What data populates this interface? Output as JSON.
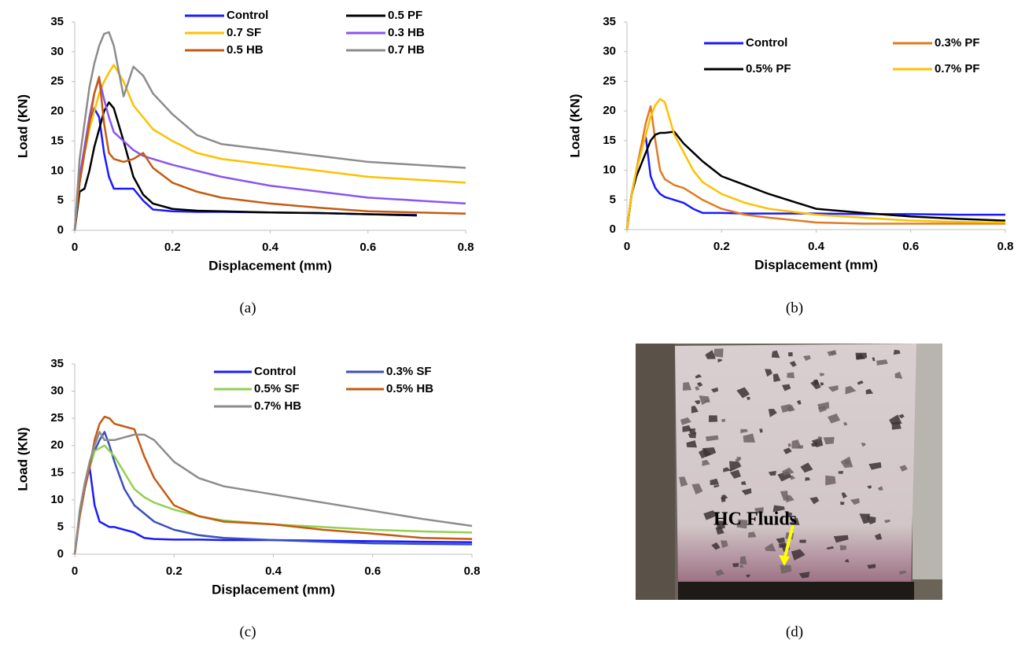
{
  "chart_data": [
    {
      "type": "line",
      "caption": "(a)",
      "x_label": "Displacement (mm)",
      "y_label": "Load (KN)",
      "xlim": [
        0,
        0.8
      ],
      "ylim": [
        0,
        35
      ],
      "xticks": [
        0,
        0.2,
        0.4,
        0.6,
        0.8
      ],
      "yticks": [
        0,
        5,
        10,
        15,
        20,
        25,
        30,
        35
      ],
      "x": [
        0,
        0.01,
        0.02,
        0.03,
        0.04,
        0.05,
        0.06,
        0.07,
        0.08,
        0.1,
        0.12,
        0.14,
        0.16,
        0.2,
        0.25,
        0.3,
        0.4,
        0.5,
        0.6,
        0.7,
        0.8
      ],
      "series": [
        {
          "name": "Control",
          "color": "#1a1aff",
          "values": [
            0,
            8,
            13,
            17,
            20.5,
            19,
            13,
            9,
            7,
            7,
            7,
            5,
            3.5,
            3.2,
            3.1,
            3.1,
            3,
            2.9,
            2.7,
            2.6,
            null
          ]
        },
        {
          "name": "0.5 PF",
          "color": "#000000",
          "values": [
            0,
            6.5,
            7,
            10,
            14,
            17,
            20,
            21.5,
            20.5,
            15,
            9,
            6,
            4.5,
            3.6,
            3.3,
            3.2,
            3,
            2.9,
            2.7,
            2.5,
            null
          ]
        },
        {
          "name": "0.7 SF",
          "color": "#ffc000",
          "values": [
            0,
            9,
            13,
            17,
            20,
            23,
            25,
            26.5,
            27.8,
            25,
            21,
            19,
            17,
            15,
            13,
            12,
            11,
            10,
            9,
            8.5,
            8
          ]
        },
        {
          "name": "0.3 HB",
          "color": "#8a55f0",
          "values": [
            0,
            9,
            14,
            19,
            23,
            25.5,
            22,
            19,
            16.5,
            15,
            13.5,
            12.5,
            12,
            11,
            10,
            9,
            7.5,
            6.5,
            5.5,
            5,
            4.5
          ]
        },
        {
          "name": "0.5 HB",
          "color": "#c55a11",
          "values": [
            0,
            8,
            13,
            18,
            23,
            25.8,
            18,
            13,
            12,
            11.5,
            12,
            13,
            10.5,
            8,
            6.5,
            5.5,
            4.5,
            3.8,
            3.2,
            3,
            2.8
          ]
        },
        {
          "name": "0.7 HB",
          "color": "#8c8c8c",
          "values": [
            0,
            12,
            18,
            24,
            28,
            31,
            33,
            33.3,
            31,
            22.5,
            27.5,
            26,
            23,
            19.5,
            16,
            14.5,
            13.5,
            12.5,
            11.5,
            11,
            10.5
          ]
        }
      ]
    },
    {
      "type": "line",
      "caption": "(b)",
      "x_label": "Displacement (mm)",
      "y_label": "Load (KN)",
      "xlim": [
        0,
        0.8
      ],
      "ylim": [
        0,
        35
      ],
      "xticks": [
        0,
        0.2,
        0.4,
        0.6,
        0.8
      ],
      "yticks": [
        0,
        5,
        10,
        15,
        20,
        25,
        30,
        35
      ],
      "x": [
        0,
        0.01,
        0.02,
        0.03,
        0.04,
        0.05,
        0.06,
        0.07,
        0.08,
        0.1,
        0.12,
        0.14,
        0.16,
        0.2,
        0.25,
        0.3,
        0.4,
        0.5,
        0.6,
        0.7,
        0.8
      ],
      "series": [
        {
          "name": "Control",
          "color": "#1a1aff",
          "values": [
            0,
            6,
            10,
            14,
            15.5,
            9,
            7,
            6,
            5.5,
            5,
            4.5,
            3.5,
            2.8,
            2.8,
            2.7,
            2.7,
            2.7,
            2.6,
            2.6,
            2.5,
            2.5
          ]
        },
        {
          "name": "0.3% PF",
          "color": "#e07b20",
          "values": [
            0,
            6,
            10,
            14,
            18,
            20.8,
            15,
            10,
            8.5,
            7.5,
            7,
            6,
            5,
            3.5,
            2.5,
            2,
            1.2,
            1,
            1,
            1,
            1
          ]
        },
        {
          "name": "0.5% PF",
          "color": "#000000",
          "values": [
            0,
            6,
            9,
            11,
            13,
            15,
            16,
            16.3,
            16.3,
            16.5,
            14.5,
            13,
            11.5,
            9,
            7.5,
            6,
            3.5,
            2.8,
            2.2,
            1.8,
            1.5
          ]
        },
        {
          "name": "0.7% PF",
          "color": "#ffc000",
          "values": [
            0,
            6,
            10,
            13,
            16,
            19,
            21,
            22,
            21.5,
            16,
            13,
            10,
            8,
            6,
            4.5,
            3.5,
            2.5,
            2,
            1.5,
            1.3,
            1.2
          ]
        }
      ]
    },
    {
      "type": "line",
      "caption": "(c)",
      "x_label": "Displacement (mm)",
      "y_label": "Load (KN)",
      "xlim": [
        0,
        0.8
      ],
      "ylim": [
        0,
        35
      ],
      "xticks": [
        0,
        0.2,
        0.4,
        0.6,
        0.8
      ],
      "yticks": [
        0,
        5,
        10,
        15,
        20,
        25,
        30,
        35
      ],
      "x": [
        0,
        0.01,
        0.02,
        0.03,
        0.04,
        0.05,
        0.06,
        0.07,
        0.08,
        0.1,
        0.12,
        0.14,
        0.16,
        0.2,
        0.25,
        0.3,
        0.4,
        0.5,
        0.6,
        0.7,
        0.8
      ],
      "series": [
        {
          "name": "Control",
          "color": "#1a1aff",
          "values": [
            0,
            7,
            12,
            16,
            9,
            6,
            5.5,
            5,
            5,
            4.5,
            4,
            3,
            2.8,
            2.7,
            2.7,
            2.6,
            2.6,
            2.5,
            2.4,
            2.3,
            2.2
          ]
        },
        {
          "name": "0.3% SF",
          "color": "#3a4fc0",
          "values": [
            0,
            7,
            12,
            16,
            19,
            21,
            22.5,
            20,
            17,
            12,
            9,
            7.5,
            6,
            4.5,
            3.5,
            3,
            2.6,
            2.3,
            2,
            1.9,
            1.8
          ]
        },
        {
          "name": "0.5% SF",
          "color": "#92d050",
          "values": [
            0,
            7,
            12,
            16,
            19,
            19.5,
            20,
            19,
            18,
            15,
            12,
            10.5,
            9.5,
            8.2,
            7,
            6.2,
            5.5,
            5,
            4.5,
            4.2,
            4
          ]
        },
        {
          "name": "0.5% HB",
          "color": "#c55a11",
          "values": [
            0,
            7,
            12,
            16,
            21,
            24,
            25.3,
            25,
            24,
            23.5,
            23,
            18,
            14,
            9,
            7,
            6,
            5.5,
            4.5,
            3.8,
            3,
            2.8
          ]
        },
        {
          "name": "0.7% HB",
          "color": "#8c8c8c",
          "values": [
            0,
            8,
            13,
            17,
            20,
            22.5,
            21,
            21,
            21,
            21.5,
            22,
            22,
            21,
            17,
            14,
            12.5,
            11,
            9.5,
            8,
            6.5,
            5.2
          ]
        }
      ]
    }
  ],
  "photo": {
    "label": "HC Fluids",
    "caption": "(d)"
  }
}
